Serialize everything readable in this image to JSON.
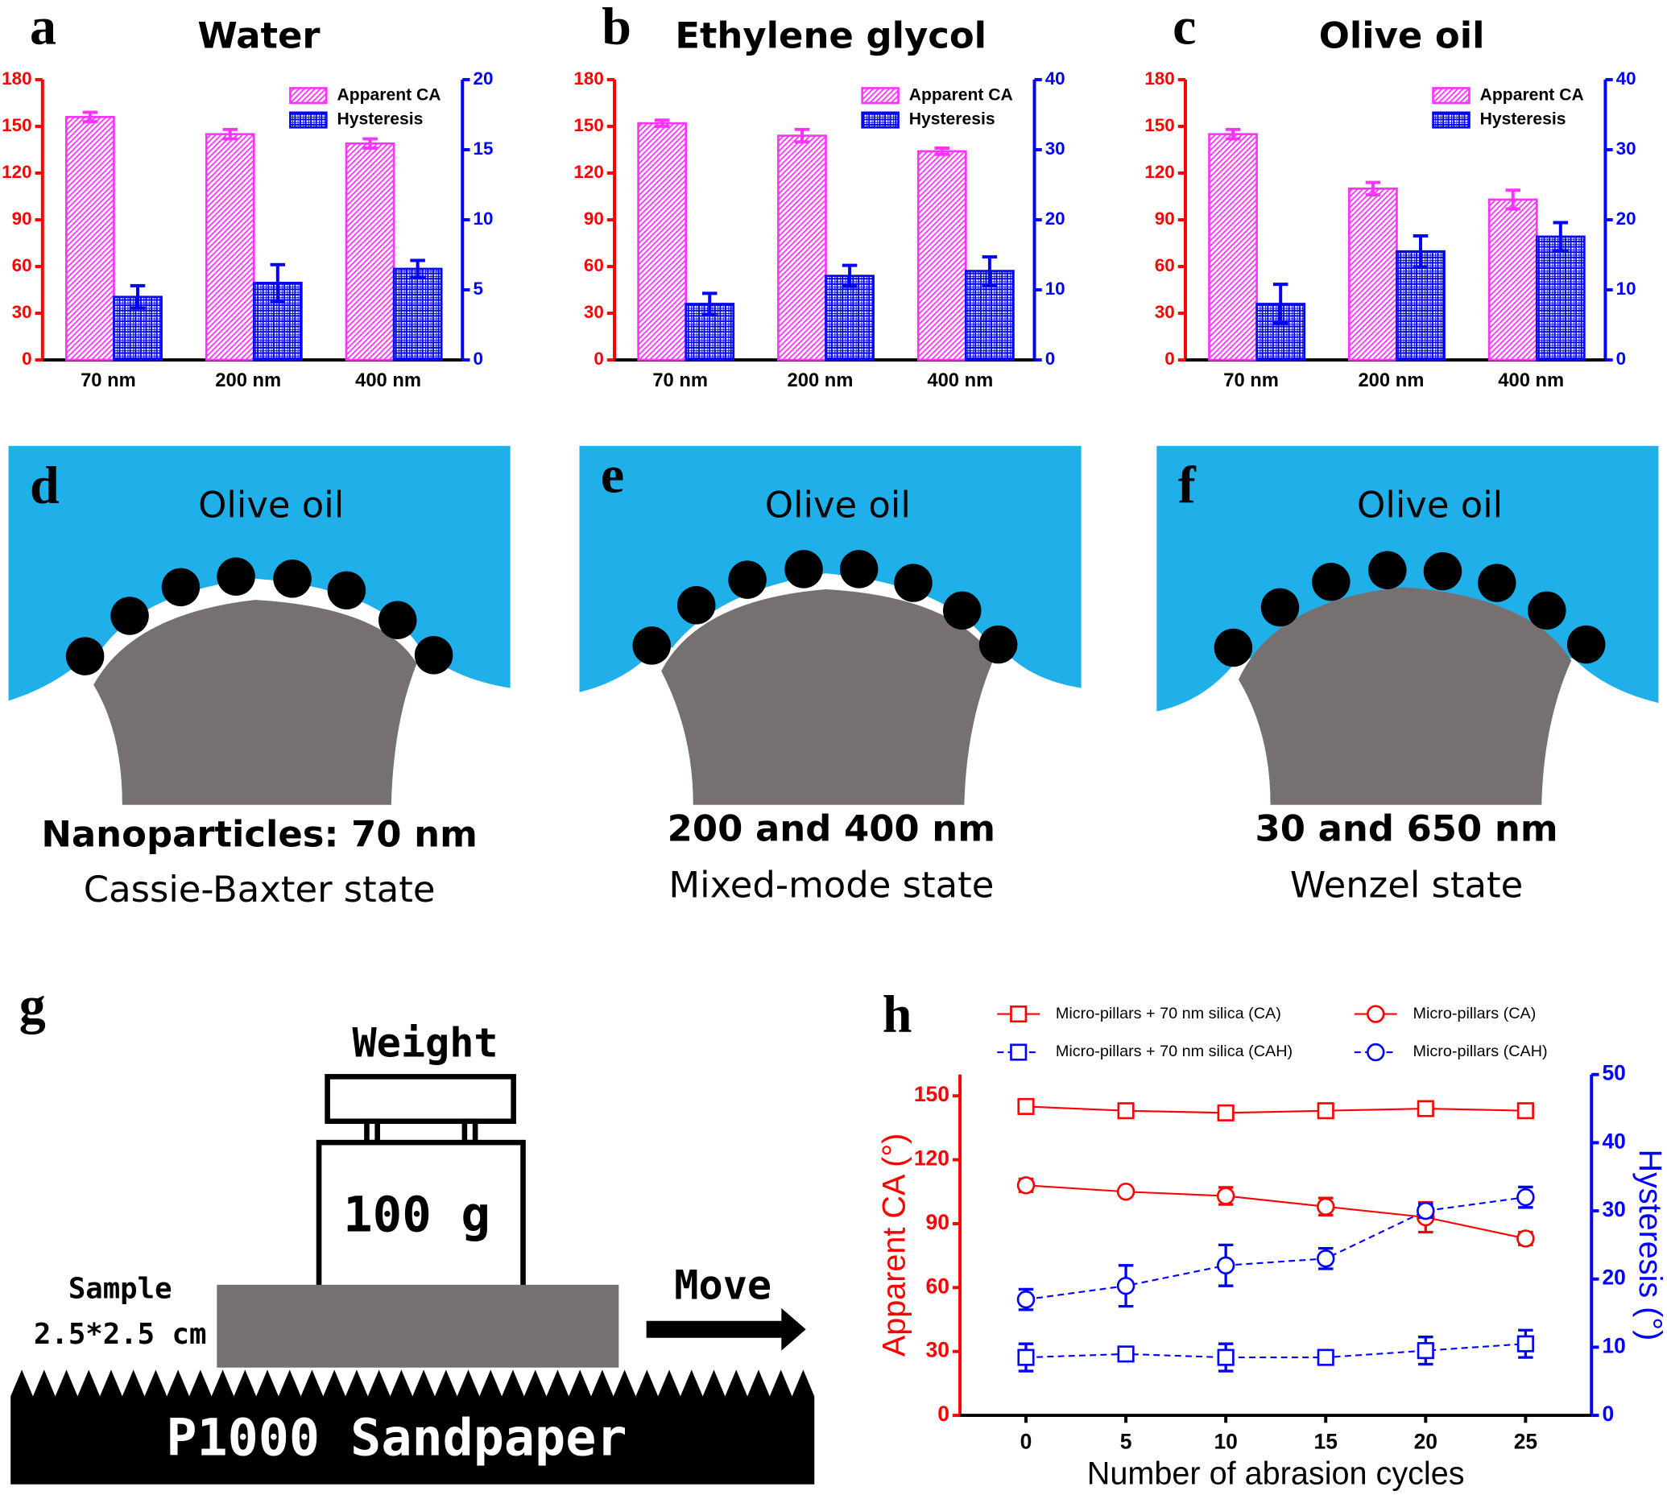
{
  "chart_data": [
    {
      "type": "bar",
      "panel_label": "a",
      "title": "Water",
      "categories": [
        "70 nm",
        "200 nm",
        "400 nm"
      ],
      "series": [
        {
          "name": "Apparent CA",
          "color": "#ff33ff",
          "pattern": "hatch",
          "values": [
            156,
            145,
            139
          ],
          "errors": [
            3,
            3,
            3
          ]
        },
        {
          "name": "Hysteresis",
          "color": "#0000ff",
          "pattern": "grid",
          "axis": "y2",
          "values": [
            4.5,
            5.5,
            6.5
          ],
          "errors": [
            0.8,
            1.3,
            0.6
          ]
        }
      ],
      "ylim": [
        0,
        180
      ],
      "yticks": [
        0,
        30,
        60,
        90,
        120,
        150,
        180
      ],
      "y2lim": [
        0,
        20
      ],
      "y2ticks": [
        0,
        5,
        10,
        15,
        20
      ],
      "ycolor": "#ff0000",
      "y2color": "#0000ff",
      "legend": "top-right"
    },
    {
      "type": "bar",
      "panel_label": "b",
      "title": "Ethylene glycol",
      "categories": [
        "70 nm",
        "200 nm",
        "400 nm"
      ],
      "series": [
        {
          "name": "Apparent CA",
          "color": "#ff33ff",
          "pattern": "hatch",
          "values": [
            152,
            144,
            134
          ],
          "errors": [
            2,
            4,
            2
          ]
        },
        {
          "name": "Hysteresis",
          "color": "#0000ff",
          "pattern": "grid",
          "axis": "y2",
          "values": [
            8,
            12,
            12.7
          ],
          "errors": [
            1.5,
            1.5,
            2
          ]
        }
      ],
      "ylim": [
        0,
        180
      ],
      "yticks": [
        0,
        30,
        60,
        90,
        120,
        150,
        180
      ],
      "y2lim": [
        0,
        40
      ],
      "y2ticks": [
        0,
        10,
        20,
        30,
        40
      ],
      "ycolor": "#ff0000",
      "y2color": "#0000ff",
      "legend": "top-right"
    },
    {
      "type": "bar",
      "panel_label": "c",
      "title": "Olive oil",
      "categories": [
        "70 nm",
        "200 nm",
        "400 nm"
      ],
      "series": [
        {
          "name": "Apparent CA",
          "color": "#ff33ff",
          "pattern": "hatch",
          "values": [
            145,
            110,
            103
          ],
          "errors": [
            3,
            4,
            6
          ]
        },
        {
          "name": "Hysteresis",
          "color": "#0000ff",
          "pattern": "grid",
          "axis": "y2",
          "values": [
            8,
            15.5,
            17.6
          ],
          "errors": [
            2.8,
            2.2,
            2
          ]
        }
      ],
      "ylim": [
        0,
        180
      ],
      "yticks": [
        0,
        30,
        60,
        90,
        120,
        150,
        180
      ],
      "y2lim": [
        0,
        40
      ],
      "y2ticks": [
        0,
        10,
        20,
        30,
        40
      ],
      "ycolor": "#ff0000",
      "y2color": "#0000ff",
      "legend": "top-right"
    },
    {
      "type": "line",
      "panel_label": "h",
      "x": [
        0,
        5,
        10,
        15,
        20,
        25
      ],
      "xlim": [
        -3.3,
        28.3
      ],
      "xticks": [
        0,
        5,
        10,
        15,
        20,
        25
      ],
      "ylim": [
        0,
        160
      ],
      "yticks": [
        0,
        30,
        60,
        90,
        120,
        150
      ],
      "y2lim": [
        0,
        50
      ],
      "y2ticks": [
        0,
        10,
        20,
        30,
        40,
        50
      ],
      "xlabel": "Number of abrasion cycles",
      "ylabel": "Apparent  CA (°)",
      "y2label": "Hysteresis (°)",
      "ycolor": "#ff0000",
      "y2color": "#0000ff",
      "legend": "top",
      "series": [
        {
          "name": "Micro-pillars + 70 nm silica (CA)",
          "color": "#ff0000",
          "marker": "square",
          "linestyle": "solid",
          "values": [
            145,
            143,
            142,
            143,
            144,
            143
          ]
        },
        {
          "name": "Micro-pillars (CA)",
          "color": "#ff0000",
          "marker": "circle",
          "linestyle": "solid",
          "values": [
            108,
            105,
            103,
            98,
            93,
            83
          ],
          "errors": [
            3,
            1,
            4,
            4,
            7,
            3
          ]
        },
        {
          "name": "Micro-pillars + 70 nm silica (CAH)",
          "color": "#0000ff",
          "marker": "square",
          "linestyle": "dashed",
          "axis": "y2",
          "values": [
            8.5,
            9,
            8.5,
            8.5,
            9.5,
            10.5
          ],
          "errors": [
            2,
            1,
            2,
            0.5,
            2,
            2
          ]
        },
        {
          "name": "Micro-pillars (CAH)",
          "color": "#0000ff",
          "marker": "circle",
          "linestyle": "dashed",
          "axis": "y2",
          "values": [
            17,
            19,
            22,
            23,
            30,
            32
          ],
          "errors": [
            1.5,
            3,
            3,
            1.5,
            1,
            1.5
          ]
        }
      ]
    }
  ],
  "schematics": {
    "wetting": [
      {
        "label": "d",
        "medium": "Olive oil",
        "caption": "Nanoparticles: 70 nm",
        "state": "Cassie-Baxter state"
      },
      {
        "label": "e",
        "medium": "Olive oil",
        "caption": "200 and 400 nm",
        "state": "Mixed-mode state"
      },
      {
        "label": "f",
        "medium": "Olive oil",
        "caption": "30 and 650 nm",
        "state": "Wenzel state"
      }
    ],
    "abrasion": {
      "label": "g",
      "weight": "Weight",
      "mass": "100 g",
      "sample": "Sample",
      "sample_size": "2.5*2.5 cm",
      "move": "Move",
      "sandpaper": "P1000 Sandpaper"
    }
  }
}
